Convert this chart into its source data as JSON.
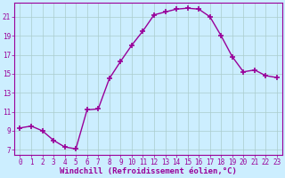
{
  "x": [
    0,
    1,
    2,
    3,
    4,
    5,
    6,
    7,
    8,
    9,
    10,
    11,
    12,
    13,
    14,
    15,
    16,
    17,
    18,
    19,
    20,
    21,
    22,
    23
  ],
  "y": [
    9.3,
    9.5,
    9.0,
    8.0,
    7.3,
    7.1,
    11.2,
    11.3,
    14.5,
    16.3,
    18.0,
    19.5,
    21.2,
    21.5,
    21.8,
    21.9,
    21.8,
    21.0,
    19.0,
    16.8,
    15.2,
    15.4,
    14.8,
    14.6
  ],
  "line_color": "#990099",
  "marker": "+",
  "marker_size": 4,
  "bg_color": "#cceeff",
  "grid_color": "#aacccc",
  "xlabel": "Windchill (Refroidissement éolien,°C)",
  "xlabel_color": "#990099",
  "ylabel_ticks": [
    7,
    9,
    11,
    13,
    15,
    17,
    19,
    21
  ],
  "xlim": [
    -0.5,
    23.5
  ],
  "ylim": [
    6.5,
    22.5
  ],
  "xticks": [
    0,
    1,
    2,
    3,
    4,
    5,
    6,
    7,
    8,
    9,
    10,
    11,
    12,
    13,
    14,
    15,
    16,
    17,
    18,
    19,
    20,
    21,
    22,
    23
  ],
  "tick_fontsize": 5.5,
  "xlabel_fontsize": 6.5,
  "marker_color": "#990099"
}
